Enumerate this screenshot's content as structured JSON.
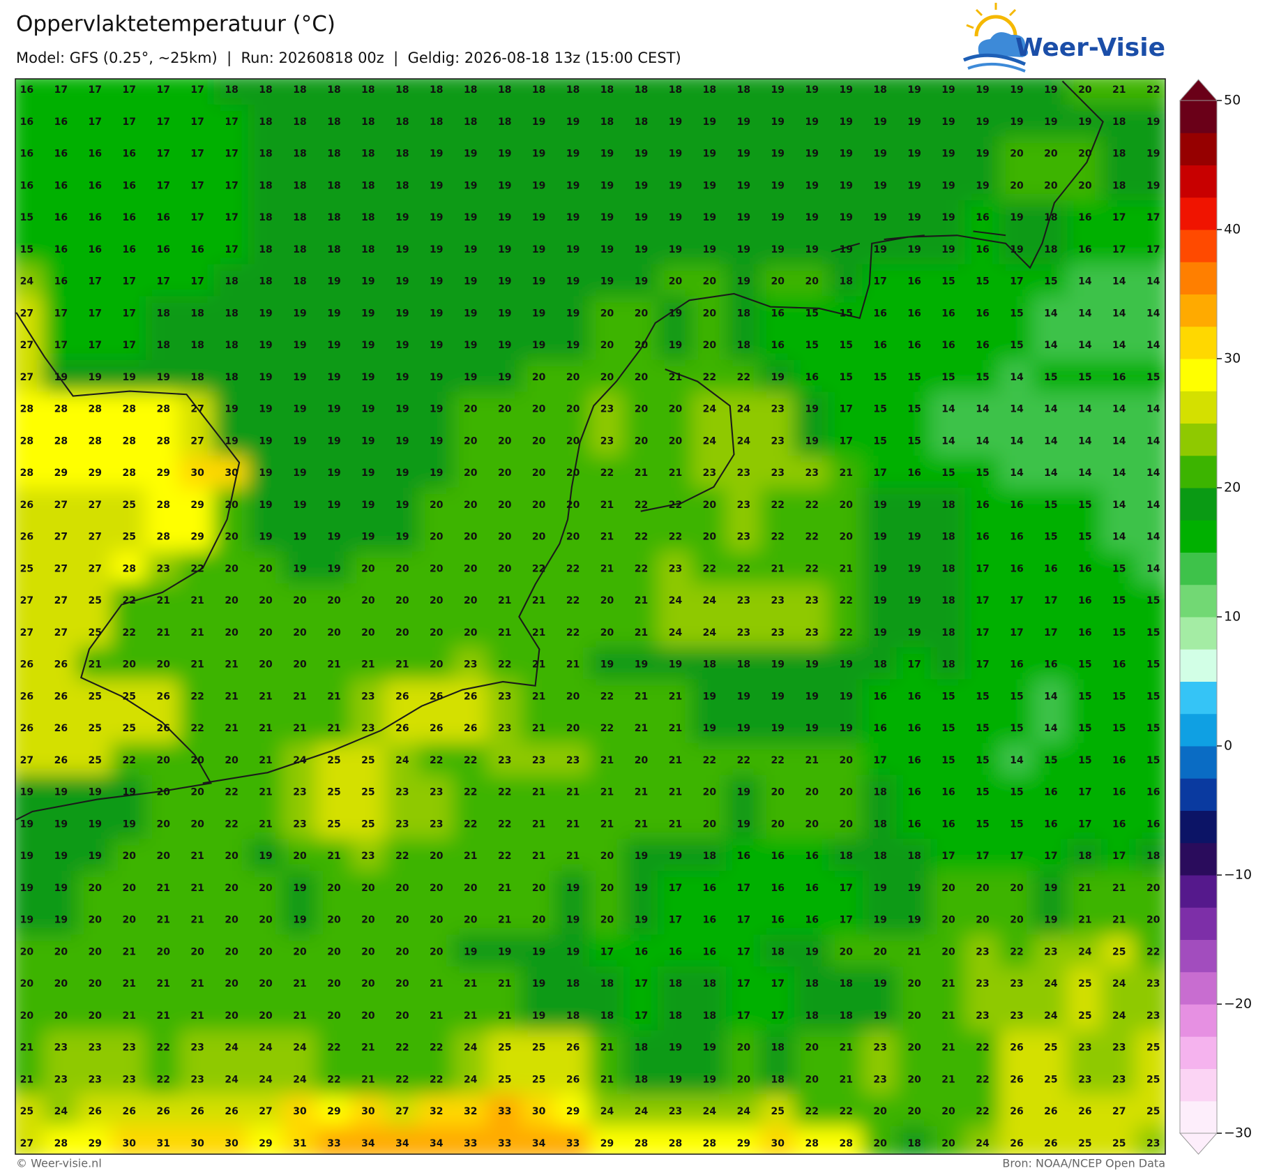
{
  "header": {
    "title": "Oppervlaktetemperatuur (°C)",
    "subtitle": "Model: GFS (0.25°, ~25km)  |  Run: 20260818 00z  |  Geldig: 2026-08-18 13z (15:00 CEST)",
    "logo": "Weer-Visie"
  },
  "grid": {
    "values": [
      [
        16,
        17,
        17,
        17,
        17,
        17,
        18,
        18,
        18,
        18,
        18,
        18,
        18,
        18,
        18,
        18,
        18,
        18,
        18,
        18,
        18,
        18,
        19,
        19,
        19,
        18,
        19,
        19,
        19,
        19,
        19,
        20,
        21,
        22
      ],
      [
        16,
        16,
        17,
        17,
        17,
        17,
        17,
        18,
        18,
        18,
        18,
        18,
        18,
        18,
        18,
        19,
        19,
        18,
        18,
        19,
        19,
        19,
        19,
        19,
        19,
        19,
        19,
        19,
        19,
        19,
        19,
        19,
        18,
        19
      ],
      [
        16,
        16,
        16,
        16,
        17,
        17,
        17,
        18,
        18,
        18,
        18,
        18,
        19,
        19,
        19,
        19,
        19,
        19,
        19,
        19,
        19,
        19,
        19,
        19,
        19,
        19,
        19,
        19,
        19,
        20,
        20,
        20,
        18,
        19
      ],
      [
        16,
        16,
        16,
        16,
        17,
        17,
        17,
        18,
        18,
        18,
        18,
        18,
        19,
        19,
        19,
        19,
        19,
        19,
        19,
        19,
        19,
        19,
        19,
        19,
        19,
        19,
        19,
        19,
        19,
        20,
        20,
        20,
        18,
        19
      ],
      [
        15,
        16,
        16,
        16,
        16,
        17,
        17,
        18,
        18,
        18,
        18,
        19,
        19,
        19,
        19,
        19,
        19,
        19,
        19,
        19,
        19,
        19,
        19,
        19,
        19,
        19,
        19,
        19,
        16,
        19,
        18,
        16,
        17,
        17
      ],
      [
        15,
        16,
        16,
        16,
        16,
        16,
        17,
        18,
        18,
        18,
        18,
        19,
        19,
        19,
        19,
        19,
        19,
        19,
        19,
        19,
        19,
        19,
        19,
        19,
        19,
        19,
        19,
        19,
        16,
        19,
        18,
        16,
        17,
        17
      ],
      [
        24,
        16,
        17,
        17,
        17,
        17,
        18,
        18,
        18,
        19,
        19,
        19,
        19,
        19,
        19,
        19,
        19,
        19,
        19,
        20,
        20,
        19,
        20,
        20,
        18,
        17,
        16,
        15,
        15,
        17,
        15,
        14,
        14,
        14
      ],
      [
        27,
        17,
        17,
        17,
        18,
        18,
        18,
        19,
        19,
        19,
        19,
        19,
        19,
        19,
        19,
        19,
        19,
        20,
        20,
        19,
        20,
        18,
        16,
        15,
        15,
        16,
        16,
        16,
        16,
        15,
        14,
        14,
        14,
        14
      ],
      [
        27,
        17,
        17,
        17,
        18,
        18,
        18,
        19,
        19,
        19,
        19,
        19,
        19,
        19,
        19,
        19,
        19,
        20,
        20,
        19,
        20,
        18,
        16,
        15,
        15,
        16,
        16,
        16,
        16,
        15,
        14,
        14,
        14,
        14
      ],
      [
        27,
        19,
        19,
        19,
        19,
        18,
        18,
        19,
        19,
        19,
        19,
        19,
        19,
        19,
        19,
        20,
        20,
        20,
        20,
        21,
        22,
        22,
        19,
        16,
        15,
        15,
        15,
        15,
        15,
        14,
        15,
        15,
        16,
        15
      ],
      [
        28,
        28,
        28,
        28,
        28,
        27,
        19,
        19,
        19,
        19,
        19,
        19,
        19,
        20,
        20,
        20,
        20,
        23,
        20,
        20,
        24,
        24,
        23,
        19,
        17,
        15,
        15,
        14,
        14,
        14,
        14,
        14,
        14,
        14
      ],
      [
        28,
        28,
        28,
        28,
        28,
        27,
        19,
        19,
        19,
        19,
        19,
        19,
        19,
        20,
        20,
        20,
        20,
        23,
        20,
        20,
        24,
        24,
        23,
        19,
        17,
        15,
        15,
        14,
        14,
        14,
        14,
        14,
        14,
        14
      ],
      [
        28,
        29,
        29,
        28,
        29,
        30,
        30,
        19,
        19,
        19,
        19,
        19,
        19,
        20,
        20,
        20,
        20,
        22,
        21,
        21,
        23,
        23,
        23,
        23,
        21,
        17,
        16,
        15,
        15,
        14,
        14,
        14,
        14,
        14
      ],
      [
        26,
        27,
        27,
        25,
        28,
        29,
        20,
        19,
        19,
        19,
        19,
        19,
        20,
        20,
        20,
        20,
        20,
        21,
        22,
        22,
        20,
        23,
        22,
        22,
        20,
        19,
        19,
        18,
        16,
        16,
        15,
        15,
        14,
        14
      ],
      [
        26,
        27,
        27,
        25,
        28,
        29,
        20,
        19,
        19,
        19,
        19,
        19,
        20,
        20,
        20,
        20,
        20,
        21,
        22,
        22,
        20,
        23,
        22,
        22,
        20,
        19,
        19,
        18,
        16,
        16,
        15,
        15,
        14,
        14
      ],
      [
        25,
        27,
        27,
        28,
        23,
        22,
        20,
        20,
        19,
        19,
        20,
        20,
        20,
        20,
        20,
        22,
        22,
        21,
        22,
        23,
        22,
        22,
        21,
        22,
        21,
        19,
        19,
        18,
        17,
        16,
        16,
        16,
        15,
        14
      ],
      [
        27,
        27,
        25,
        22,
        21,
        21,
        20,
        20,
        20,
        20,
        20,
        20,
        20,
        20,
        21,
        21,
        22,
        20,
        21,
        24,
        24,
        23,
        23,
        23,
        22,
        19,
        19,
        18,
        17,
        17,
        17,
        16,
        15,
        15
      ],
      [
        27,
        27,
        25,
        22,
        21,
        21,
        20,
        20,
        20,
        20,
        20,
        20,
        20,
        20,
        21,
        21,
        22,
        20,
        21,
        24,
        24,
        23,
        23,
        23,
        22,
        19,
        19,
        18,
        17,
        17,
        17,
        16,
        15,
        15
      ],
      [
        26,
        26,
        21,
        20,
        20,
        21,
        21,
        20,
        20,
        21,
        21,
        21,
        20,
        23,
        22,
        21,
        21,
        19,
        19,
        19,
        18,
        18,
        19,
        19,
        19,
        18,
        17,
        18,
        17,
        16,
        16,
        15,
        16,
        15
      ],
      [
        26,
        26,
        25,
        25,
        26,
        22,
        21,
        21,
        21,
        21,
        23,
        26,
        26,
        26,
        23,
        21,
        20,
        22,
        21,
        21,
        19,
        19,
        19,
        19,
        19,
        16,
        16,
        15,
        15,
        15,
        14,
        15,
        15,
        15
      ],
      [
        26,
        26,
        25,
        25,
        26,
        22,
        21,
        21,
        21,
        21,
        23,
        26,
        26,
        26,
        23,
        21,
        20,
        22,
        21,
        21,
        19,
        19,
        19,
        19,
        19,
        16,
        16,
        15,
        15,
        15,
        14,
        15,
        15,
        15
      ],
      [
        27,
        26,
        25,
        22,
        20,
        20,
        20,
        21,
        24,
        25,
        25,
        24,
        22,
        22,
        23,
        23,
        23,
        21,
        20,
        21,
        22,
        22,
        22,
        21,
        20,
        17,
        16,
        15,
        15,
        14,
        15,
        15,
        16,
        15
      ],
      [
        19,
        19,
        19,
        19,
        20,
        20,
        22,
        21,
        23,
        25,
        25,
        23,
        23,
        22,
        22,
        21,
        21,
        21,
        21,
        21,
        20,
        19,
        20,
        20,
        20,
        18,
        16,
        16,
        15,
        15,
        16,
        17,
        16,
        16
      ],
      [
        19,
        19,
        19,
        19,
        20,
        20,
        22,
        21,
        23,
        25,
        25,
        23,
        23,
        22,
        22,
        21,
        21,
        21,
        21,
        21,
        20,
        19,
        20,
        20,
        20,
        18,
        16,
        16,
        15,
        15,
        16,
        17,
        16,
        16
      ],
      [
        19,
        19,
        19,
        20,
        20,
        21,
        20,
        19,
        20,
        21,
        23,
        22,
        20,
        21,
        22,
        21,
        21,
        20,
        19,
        19,
        18,
        16,
        16,
        16,
        18,
        18,
        18,
        17,
        17,
        17,
        17,
        18,
        17,
        18
      ],
      [
        19,
        19,
        20,
        20,
        21,
        21,
        20,
        20,
        19,
        20,
        20,
        20,
        20,
        20,
        21,
        20,
        19,
        20,
        19,
        17,
        16,
        17,
        16,
        16,
        17,
        19,
        19,
        20,
        20,
        20,
        19,
        21,
        21,
        20
      ],
      [
        19,
        19,
        20,
        20,
        21,
        21,
        20,
        20,
        19,
        20,
        20,
        20,
        20,
        20,
        21,
        20,
        19,
        20,
        19,
        17,
        16,
        17,
        16,
        16,
        17,
        19,
        19,
        20,
        20,
        20,
        19,
        21,
        21,
        20
      ],
      [
        20,
        20,
        20,
        21,
        20,
        20,
        20,
        20,
        20,
        20,
        20,
        20,
        20,
        19,
        19,
        19,
        19,
        17,
        16,
        16,
        16,
        17,
        18,
        19,
        20,
        20,
        21,
        20,
        23,
        22,
        23,
        24,
        25,
        22
      ],
      [
        20,
        20,
        20,
        21,
        21,
        21,
        20,
        20,
        21,
        20,
        20,
        20,
        21,
        21,
        21,
        19,
        18,
        18,
        17,
        18,
        18,
        17,
        17,
        18,
        18,
        19,
        20,
        21,
        23,
        23,
        24,
        25,
        24,
        23
      ],
      [
        20,
        20,
        20,
        21,
        21,
        21,
        20,
        20,
        21,
        20,
        20,
        20,
        21,
        21,
        21,
        19,
        18,
        18,
        17,
        18,
        18,
        17,
        17,
        18,
        18,
        19,
        20,
        21,
        23,
        23,
        24,
        25,
        24,
        23
      ],
      [
        21,
        23,
        23,
        23,
        22,
        23,
        24,
        24,
        24,
        22,
        21,
        22,
        22,
        24,
        25,
        25,
        26,
        21,
        18,
        19,
        19,
        20,
        18,
        20,
        21,
        23,
        20,
        21,
        22,
        26,
        25,
        23,
        23,
        25
      ],
      [
        21,
        23,
        23,
        23,
        22,
        23,
        24,
        24,
        24,
        22,
        21,
        22,
        22,
        24,
        25,
        25,
        26,
        21,
        18,
        19,
        19,
        20,
        18,
        20,
        21,
        23,
        20,
        21,
        22,
        26,
        25,
        23,
        23,
        25
      ],
      [
        25,
        24,
        26,
        26,
        26,
        26,
        26,
        27,
        30,
        29,
        30,
        27,
        32,
        32,
        33,
        30,
        29,
        24,
        24,
        23,
        24,
        24,
        25,
        22,
        22,
        20,
        20,
        20,
        22,
        26,
        26,
        26,
        27,
        25
      ],
      [
        27,
        28,
        29,
        30,
        31,
        30,
        30,
        29,
        31,
        33,
        34,
        34,
        34,
        33,
        33,
        34,
        33,
        29,
        28,
        28,
        28,
        29,
        30,
        28,
        28,
        20,
        18,
        20,
        24,
        26,
        26,
        25,
        25,
        23
      ]
    ]
  },
  "colorbar": {
    "lim": [
      -30,
      50
    ],
    "ticks": [
      50,
      40,
      30,
      20,
      10,
      0,
      {
        "value": -10,
        "label": "−10"
      },
      {
        "value": -20,
        "label": "−20"
      },
      {
        "value": -30,
        "label": "−30"
      }
    ],
    "colors": [
      "#fdeefb",
      "#fbd4f4",
      "#f5b3ee",
      "#e690e2",
      "#c86dd0",
      "#a24dbe",
      "#7d2fa8",
      "#55198c",
      "#2a0c5c",
      "#0c1466",
      "#0a3aa0",
      "#0a6cc4",
      "#0fa0e3",
      "#35c4f6",
      "#d2ffe6",
      "#a4eca4",
      "#72d874",
      "#3ec24a",
      "#00b000",
      "#0a9a14",
      "#3cb400",
      "#8fc900",
      "#d4e000",
      "#ffff00",
      "#ffd800",
      "#ffaa00",
      "#ff7f00",
      "#ff4a00",
      "#f01400",
      "#c80000",
      "#960000",
      "#6a0018"
    ]
  },
  "footer": {
    "credit": "© Weer-visie.nl",
    "source": "Bron: NOAA/NCEP Open Data"
  }
}
